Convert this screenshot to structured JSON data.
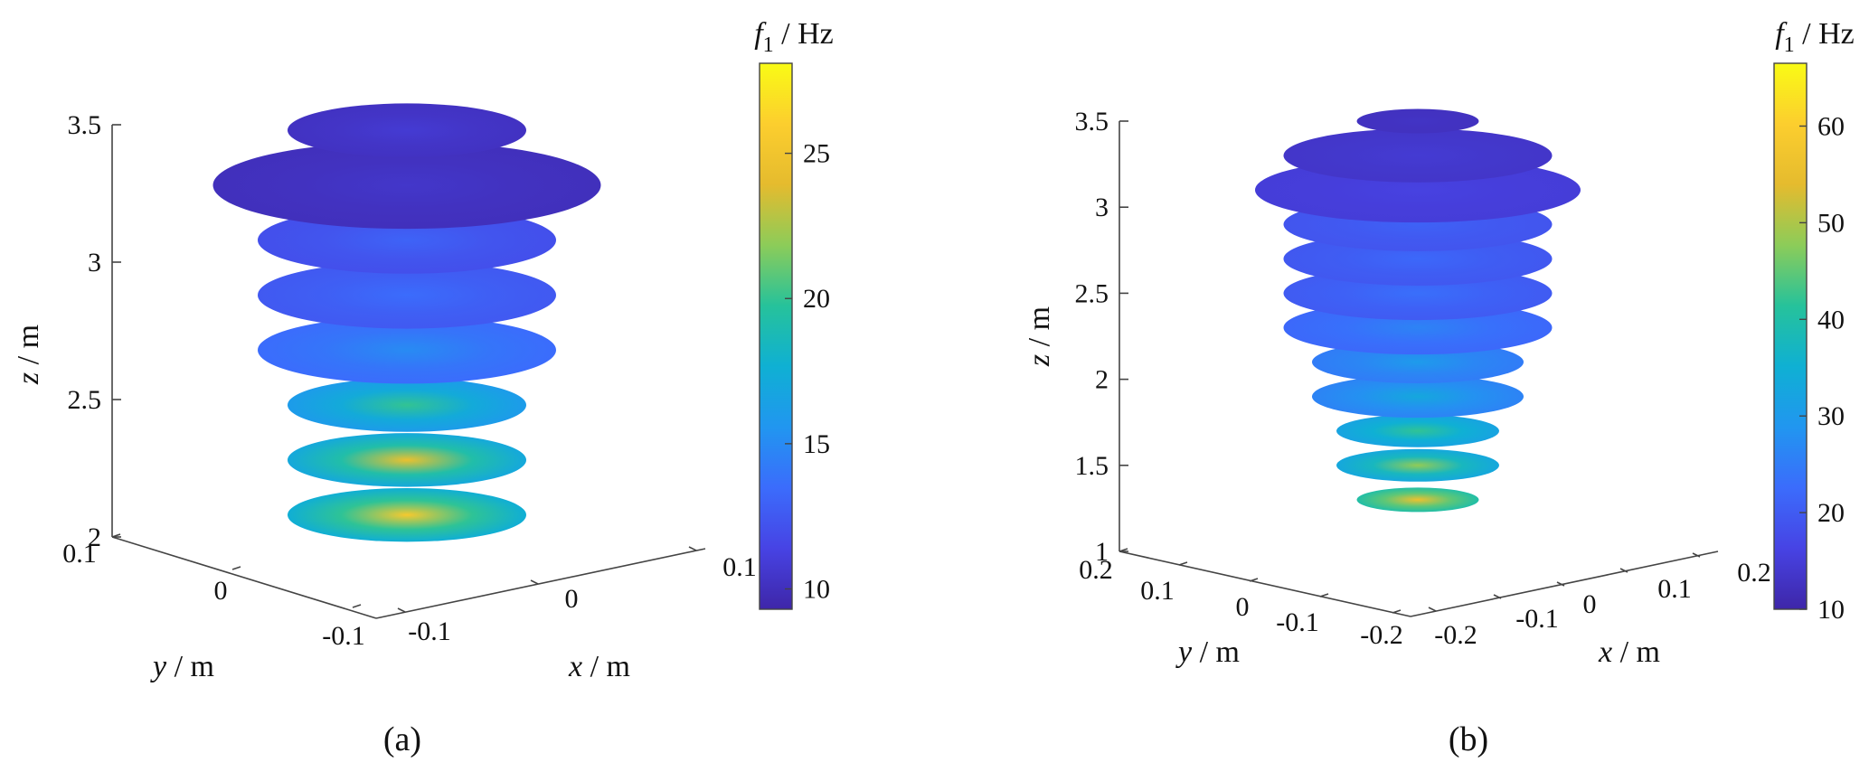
{
  "colors": {
    "colormap": [
      "#3e26a8",
      "#4743e4",
      "#3b6cfc",
      "#2196f0",
      "#0fb0d3",
      "#26c29b",
      "#8ccc59",
      "#e5bb2e",
      "#fcce2e",
      "#f9fb15"
    ],
    "axis": "#444444",
    "background": "#ffffff"
  },
  "chart_data": [
    {
      "type": "3d-disk-surface",
      "panel_label": "(a)",
      "xlabel_var": "x",
      "xlabel_unit": " / m",
      "ylabel_var": "y",
      "ylabel_unit": " / m",
      "zlabel_var": "z",
      "zlabel_unit": " / m",
      "colorbar_var": "f",
      "colorbar_sub": "1",
      "colorbar_unit": " / Hz",
      "colorbar_range": [
        9.3,
        28.1
      ],
      "colorbar_ticks": [
        "10",
        "15",
        "20",
        "25"
      ],
      "zlim": [
        2,
        3.5
      ],
      "z_ticks": [
        "2",
        "2.5",
        "3",
        "3.5"
      ],
      "x_ticks": [
        "-0.1",
        "0",
        "0.1"
      ],
      "y_ticks": [
        "0.1",
        "0",
        "-0.1"
      ],
      "disks": [
        {
          "z": 2.08,
          "radius": 0.08,
          "f_center": 25.5,
          "f_edge": 17.5
        },
        {
          "z": 2.28,
          "radius": 0.08,
          "f_center": 24.5,
          "f_edge": 17.0
        },
        {
          "z": 2.48,
          "radius": 0.08,
          "f_center": 20.0,
          "f_edge": 16.0
        },
        {
          "z": 2.68,
          "radius": 0.1,
          "f_center": 15.0,
          "f_edge": 13.5
        },
        {
          "z": 2.88,
          "radius": 0.1,
          "f_center": 13.5,
          "f_edge": 12.5
        },
        {
          "z": 3.08,
          "radius": 0.1,
          "f_center": 13.0,
          "f_edge": 12.0
        },
        {
          "z": 3.28,
          "radius": 0.13,
          "f_center": 10.5,
          "f_edge": 10.0
        },
        {
          "z": 3.48,
          "radius": 0.08,
          "f_center": 10.8,
          "f_edge": 10.2
        }
      ]
    },
    {
      "type": "3d-disk-surface",
      "panel_label": "(b)",
      "xlabel_var": "x",
      "xlabel_unit": " / m",
      "ylabel_var": "y",
      "ylabel_unit": " / m",
      "zlabel_var": "z",
      "zlabel_unit": " / m",
      "colorbar_var": "f",
      "colorbar_sub": "1",
      "colorbar_unit": " / Hz",
      "colorbar_range": [
        10,
        66.5
      ],
      "colorbar_ticks": [
        "10",
        "20",
        "30",
        "40",
        "50",
        "60"
      ],
      "zlim": [
        1,
        3.5
      ],
      "z_ticks": [
        "1",
        "1.5",
        "2",
        "2.5",
        "3",
        "3.5"
      ],
      "x_ticks": [
        "-0.2",
        "-0.1",
        "0",
        "0.1",
        "0.2"
      ],
      "y_ticks": [
        "0.2",
        "0.1",
        "0",
        "-0.1",
        "-0.2"
      ],
      "disks": [
        {
          "z": 1.3,
          "radius": 0.075,
          "f_center": 56,
          "f_edge": 40
        },
        {
          "z": 1.5,
          "radius": 0.1,
          "f_center": 48,
          "f_edge": 33
        },
        {
          "z": 1.7,
          "radius": 0.1,
          "f_center": 42,
          "f_edge": 32
        },
        {
          "z": 1.9,
          "radius": 0.13,
          "f_center": 33,
          "f_edge": 26
        },
        {
          "z": 2.1,
          "radius": 0.13,
          "f_center": 30,
          "f_edge": 25
        },
        {
          "z": 2.3,
          "radius": 0.165,
          "f_center": 26,
          "f_edge": 22
        },
        {
          "z": 2.5,
          "radius": 0.165,
          "f_center": 23,
          "f_edge": 20
        },
        {
          "z": 2.7,
          "radius": 0.165,
          "f_center": 22,
          "f_edge": 19.5
        },
        {
          "z": 2.9,
          "radius": 0.165,
          "f_center": 21,
          "f_edge": 19
        },
        {
          "z": 3.1,
          "radius": 0.2,
          "f_center": 16,
          "f_edge": 15
        },
        {
          "z": 3.3,
          "radius": 0.165,
          "f_center": 14.5,
          "f_edge": 13.5
        },
        {
          "z": 3.5,
          "radius": 0.075,
          "f_center": 13,
          "f_edge": 12.5
        }
      ]
    }
  ]
}
